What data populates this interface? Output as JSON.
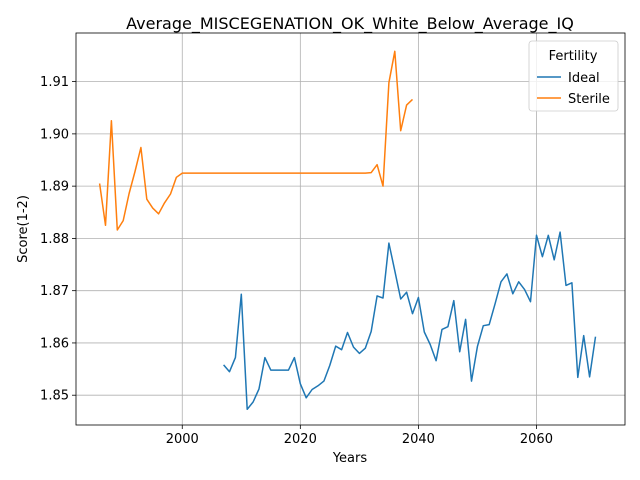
{
  "chart_data": {
    "type": "line",
    "title": "Average_MISCEGENATION_OK_White_Below_Average_IQ",
    "xlabel": "Years",
    "ylabel": "Score(1-2)",
    "xlim": [
      1982,
      2075
    ],
    "ylim": [
      1.8443,
      1.9193
    ],
    "xticks": [
      2000,
      2020,
      2040,
      2060
    ],
    "yticks": [
      1.85,
      1.86,
      1.87,
      1.88,
      1.89,
      1.9,
      1.91
    ],
    "ytick_labels": [
      "1.85",
      "1.86",
      "1.87",
      "1.88",
      "1.89",
      "1.90",
      "1.91"
    ],
    "grid": true,
    "legend": {
      "title": "Fertility",
      "placement": "upper right"
    },
    "series": [
      {
        "name": "Ideal",
        "color": "#1f77b4",
        "x": [
          2007,
          2008,
          2009,
          2010,
          2011,
          2012,
          2013,
          2014,
          2015,
          2016,
          2017,
          2018,
          2019,
          2020,
          2021,
          2022,
          2023,
          2024,
          2025,
          2026,
          2027,
          2028,
          2029,
          2030,
          2031,
          2032,
          2033,
          2034,
          2035,
          2036,
          2037,
          2038,
          2039,
          2040,
          2041,
          2042,
          2043,
          2044,
          2045,
          2046,
          2047,
          2048,
          2049,
          2050,
          2051,
          2052,
          2053,
          2054,
          2055,
          2056,
          2057,
          2058,
          2059,
          2060,
          2061,
          2062,
          2063,
          2064,
          2065,
          2066,
          2067,
          2068,
          2069,
          2070
        ],
        "y": [
          1.8558,
          1.8545,
          1.8572,
          1.8693,
          1.8473,
          1.8487,
          1.8512,
          1.8572,
          1.8548,
          1.8548,
          1.8548,
          1.8548,
          1.8572,
          1.8522,
          1.8495,
          1.8511,
          1.8518,
          1.8527,
          1.8557,
          1.8594,
          1.8587,
          1.862,
          1.8592,
          1.858,
          1.859,
          1.8622,
          1.869,
          1.8686,
          1.8791,
          1.8738,
          1.8684,
          1.8697,
          1.8656,
          1.8687,
          1.8621,
          1.8597,
          1.8566,
          1.8626,
          1.8631,
          1.8681,
          1.8583,
          1.8645,
          1.8527,
          1.8593,
          1.8633,
          1.8635,
          1.8675,
          1.8717,
          1.8732,
          1.8694,
          1.8717,
          1.8702,
          1.8679,
          1.8806,
          1.8765,
          1.8806,
          1.8759,
          1.8812,
          1.871,
          1.8715,
          1.8534,
          1.8614,
          1.8535,
          1.8612
        ]
      },
      {
        "name": "Sterile",
        "color": "#ff7f0e",
        "x": [
          1986,
          1987,
          1988,
          1989,
          1990,
          1991,
          1992,
          1993,
          1994,
          1995,
          1996,
          1997,
          1998,
          1999,
          2000,
          2001,
          2002,
          2003,
          2004,
          2005,
          2006,
          2007,
          2008,
          2009,
          2010,
          2011,
          2012,
          2013,
          2014,
          2015,
          2016,
          2017,
          2018,
          2019,
          2020,
          2021,
          2022,
          2023,
          2024,
          2025,
          2026,
          2027,
          2028,
          2029,
          2030,
          2031,
          2032,
          2033,
          2034,
          2035,
          2036,
          2037,
          2038,
          2039
        ],
        "y": [
          1.8905,
          1.8825,
          1.9025,
          1.8816,
          1.8834,
          1.8886,
          1.8928,
          1.8974,
          1.8875,
          1.8858,
          1.8847,
          1.8868,
          1.8885,
          1.8917,
          1.8925,
          1.8925,
          1.8925,
          1.8925,
          1.8925,
          1.8925,
          1.8925,
          1.8925,
          1.8925,
          1.8925,
          1.8925,
          1.8925,
          1.8925,
          1.8925,
          1.8925,
          1.8925,
          1.8925,
          1.8925,
          1.8925,
          1.8925,
          1.8925,
          1.8925,
          1.8925,
          1.8925,
          1.8925,
          1.8925,
          1.8925,
          1.8925,
          1.8925,
          1.8925,
          1.8925,
          1.8925,
          1.8926,
          1.8941,
          1.89,
          1.9098,
          1.9158,
          1.9006,
          1.9055,
          1.9066
        ]
      }
    ]
  }
}
